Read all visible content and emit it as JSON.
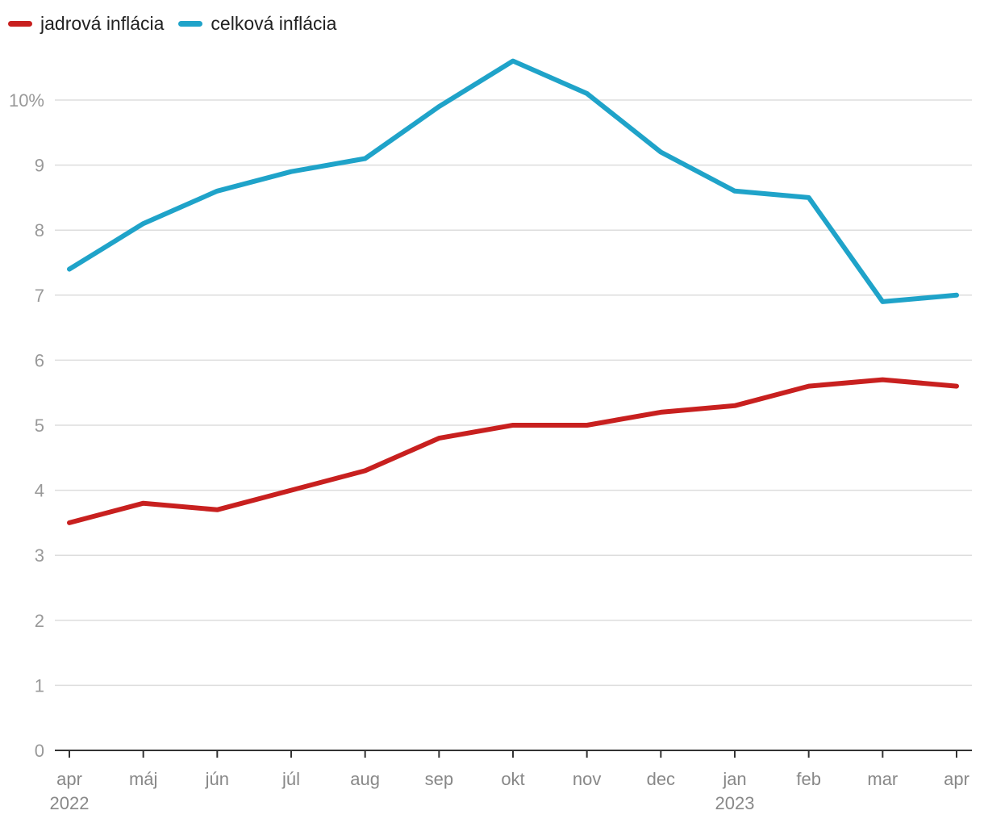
{
  "chart_data": {
    "type": "line",
    "categories": [
      "apr",
      "máj",
      "jún",
      "júl",
      "aug",
      "sep",
      "okt",
      "nov",
      "dec",
      "jan",
      "feb",
      "mar",
      "apr"
    ],
    "year_labels": [
      {
        "index": 0,
        "label": "2022"
      },
      {
        "index": 9,
        "label": "2023"
      }
    ],
    "series": [
      {
        "name": "jadrová inflácia",
        "color": "#c8201f",
        "values": [
          3.5,
          3.8,
          3.7,
          4.0,
          4.3,
          4.8,
          5.0,
          5.0,
          5.2,
          5.3,
          5.6,
          5.7,
          5.6
        ]
      },
      {
        "name": "celková inflácia",
        "color": "#1fa3c9",
        "values": [
          7.4,
          8.1,
          8.6,
          8.9,
          9.1,
          9.9,
          10.6,
          10.1,
          9.2,
          8.6,
          8.5,
          6.9,
          7.0
        ]
      }
    ],
    "y_ticks": [
      "0",
      "1",
      "2",
      "3",
      "4",
      "5",
      "6",
      "7",
      "8",
      "9",
      "10%"
    ],
    "ylim": [
      0,
      10.75
    ],
    "xlabel": "",
    "ylabel": "",
    "grid": true,
    "legend_position": "top-left"
  }
}
